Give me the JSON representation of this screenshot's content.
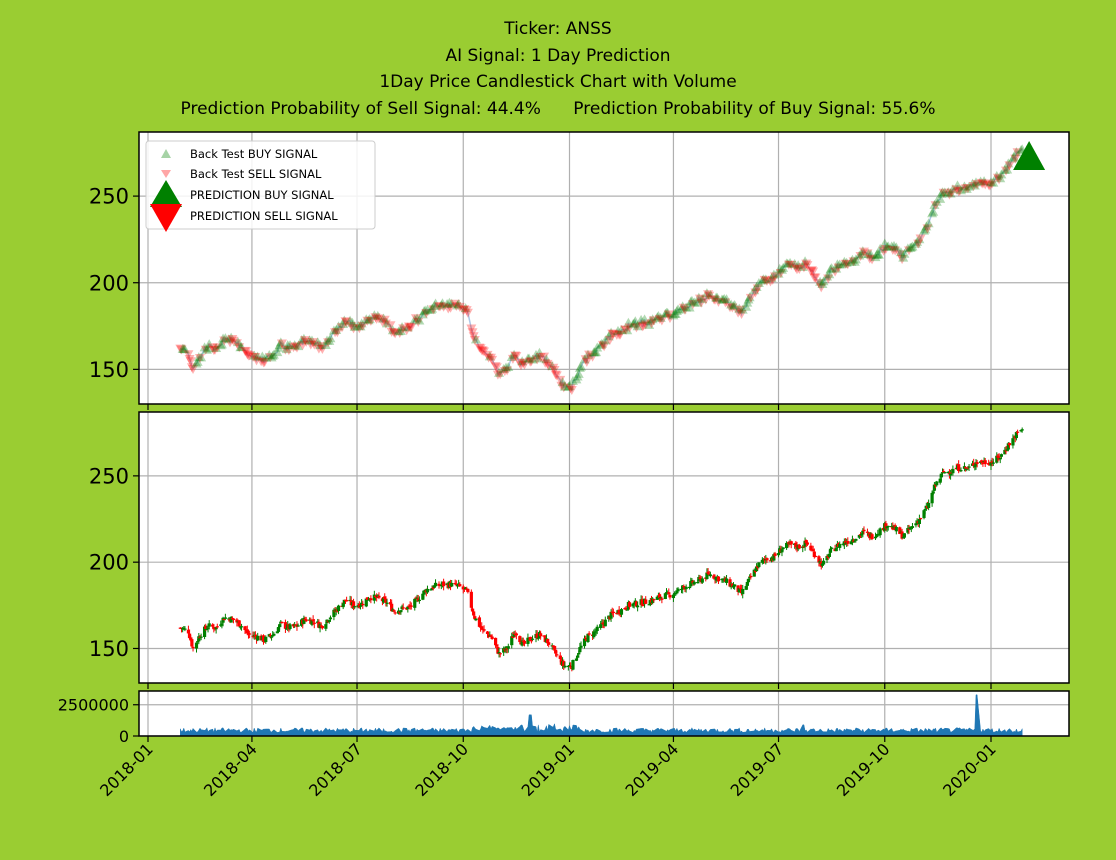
{
  "title": {
    "line1": "Ticker: ANSS",
    "line2": "AI Signal: 1 Day Prediction",
    "line3": "1Day Price Candlestick Chart with Volume",
    "line4": "Prediction Probability of Sell Signal: 44.4%      Prediction Probability of Buy Signal: 55.6%"
  },
  "colors": {
    "background": "#9acd32",
    "buy": "#008000",
    "sell": "#ff0000",
    "volume": "#1f77b4",
    "grid": "#b0b0b0",
    "price_line": "#aec7e8"
  },
  "chart_data": [
    {
      "type": "scatter",
      "panel": "signals",
      "x_axis": "date",
      "ylim": [
        130,
        287
      ],
      "yticks": [
        150,
        200,
        250
      ],
      "grid": true,
      "legend": {
        "placement": "upper-left",
        "entries": [
          "Back Test BUY SIGNAL",
          "Back Test SELL SIGNAL",
          "PREDICTION BUY SIGNAL",
          "PREDICTION SELL SIGNAL"
        ]
      },
      "price_path": [
        [
          "2018-01-29",
          162
        ],
        [
          "2018-02-05",
          160
        ],
        [
          "2018-02-09",
          150
        ],
        [
          "2018-02-15",
          158
        ],
        [
          "2018-02-22",
          163
        ],
        [
          "2018-03-01",
          162
        ],
        [
          "2018-03-08",
          168
        ],
        [
          "2018-03-15",
          167
        ],
        [
          "2018-03-22",
          164
        ],
        [
          "2018-03-29",
          158
        ],
        [
          "2018-04-05",
          157
        ],
        [
          "2018-04-12",
          155
        ],
        [
          "2018-04-19",
          158
        ],
        [
          "2018-04-26",
          164
        ],
        [
          "2018-05-03",
          162
        ],
        [
          "2018-05-10",
          163
        ],
        [
          "2018-05-17",
          167
        ],
        [
          "2018-05-24",
          166
        ],
        [
          "2018-05-31",
          163
        ],
        [
          "2018-06-07",
          168
        ],
        [
          "2018-06-14",
          173
        ],
        [
          "2018-06-21",
          178
        ],
        [
          "2018-06-28",
          175
        ],
        [
          "2018-07-05",
          176
        ],
        [
          "2018-07-12",
          180
        ],
        [
          "2018-07-19",
          179
        ],
        [
          "2018-07-26",
          177
        ],
        [
          "2018-08-02",
          172
        ],
        [
          "2018-08-09",
          173
        ],
        [
          "2018-08-16",
          174
        ],
        [
          "2018-08-23",
          179
        ],
        [
          "2018-08-30",
          184
        ],
        [
          "2018-09-06",
          186
        ],
        [
          "2018-09-13",
          187
        ],
        [
          "2018-09-20",
          187
        ],
        [
          "2018-09-27",
          186
        ],
        [
          "2018-10-04",
          183
        ],
        [
          "2018-10-11",
          168
        ],
        [
          "2018-10-18",
          160
        ],
        [
          "2018-10-25",
          157
        ],
        [
          "2018-11-01",
          147
        ],
        [
          "2018-11-08",
          150
        ],
        [
          "2018-11-15",
          160
        ],
        [
          "2018-11-22",
          152
        ],
        [
          "2018-11-29",
          156
        ],
        [
          "2018-12-06",
          158
        ],
        [
          "2018-12-13",
          154
        ],
        [
          "2018-12-20",
          147
        ],
        [
          "2018-12-27",
          140
        ],
        [
          "2019-01-03",
          140
        ],
        [
          "2019-01-10",
          150
        ],
        [
          "2019-01-17",
          157
        ],
        [
          "2019-01-24",
          160
        ],
        [
          "2019-01-31",
          165
        ],
        [
          "2019-02-07",
          170
        ],
        [
          "2019-02-14",
          172
        ],
        [
          "2019-02-21",
          175
        ],
        [
          "2019-02-28",
          176
        ],
        [
          "2019-03-07",
          177
        ],
        [
          "2019-03-14",
          178
        ],
        [
          "2019-03-21",
          180
        ],
        [
          "2019-03-28",
          181
        ],
        [
          "2019-04-04",
          183
        ],
        [
          "2019-04-11",
          186
        ],
        [
          "2019-04-18",
          188
        ],
        [
          "2019-04-25",
          190
        ],
        [
          "2019-05-02",
          193
        ],
        [
          "2019-05-09",
          191
        ],
        [
          "2019-05-16",
          189
        ],
        [
          "2019-05-23",
          186
        ],
        [
          "2019-05-30",
          182
        ],
        [
          "2019-06-06",
          190
        ],
        [
          "2019-06-13",
          198
        ],
        [
          "2019-06-20",
          202
        ],
        [
          "2019-06-27",
          203
        ],
        [
          "2019-07-04",
          208
        ],
        [
          "2019-07-11",
          210
        ],
        [
          "2019-07-18",
          209
        ],
        [
          "2019-07-25",
          211
        ],
        [
          "2019-08-01",
          205
        ],
        [
          "2019-08-08",
          198
        ],
        [
          "2019-08-15",
          206
        ],
        [
          "2019-08-22",
          210
        ],
        [
          "2019-08-29",
          212
        ],
        [
          "2019-09-05",
          214
        ],
        [
          "2019-09-12",
          217
        ],
        [
          "2019-09-19",
          215
        ],
        [
          "2019-09-26",
          218
        ],
        [
          "2019-10-03",
          222
        ],
        [
          "2019-10-10",
          219
        ],
        [
          "2019-10-17",
          215
        ],
        [
          "2019-10-24",
          220
        ],
        [
          "2019-10-31",
          225
        ],
        [
          "2019-11-07",
          232
        ],
        [
          "2019-11-14",
          245
        ],
        [
          "2019-11-21",
          252
        ],
        [
          "2019-11-28",
          253
        ],
        [
          "2019-12-05",
          255
        ],
        [
          "2019-12-12",
          254
        ],
        [
          "2019-12-19",
          258
        ],
        [
          "2019-12-26",
          258
        ],
        [
          "2020-01-02",
          258
        ],
        [
          "2020-01-09",
          261
        ],
        [
          "2020-01-16",
          268
        ],
        [
          "2020-01-23",
          274
        ],
        [
          "2020-01-28",
          277
        ]
      ],
      "prediction_buy": {
        "x": "2020-02-03",
        "y": 272
      }
    },
    {
      "type": "candlestick",
      "panel": "price",
      "x_axis": "date",
      "ylim": [
        130,
        287
      ],
      "yticks": [
        150,
        200,
        250
      ],
      "grid": true
    },
    {
      "type": "area",
      "panel": "volume",
      "x_axis": "date",
      "ylim": [
        0,
        3600000
      ],
      "yticks": [
        0,
        2500000
      ],
      "grid": true,
      "spikes": [
        [
          "2018-11-28",
          1700000
        ],
        [
          "2019-07-22",
          900000
        ],
        [
          "2019-12-20",
          3300000
        ]
      ]
    }
  ],
  "x_axis": {
    "ticks": [
      "2018-01",
      "2018-04",
      "2018-07",
      "2018-10",
      "2019-01",
      "2019-04",
      "2019-07",
      "2019-10",
      "2020-01"
    ]
  }
}
